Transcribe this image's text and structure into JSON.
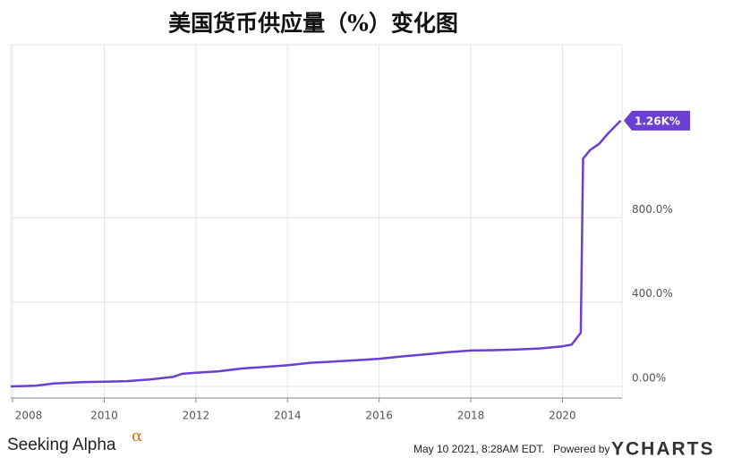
{
  "chart_data": {
    "type": "line",
    "title": "美国货币供应量（%）变化图",
    "x": [
      2007.96,
      2008.5,
      2008.9,
      2009.5,
      2010,
      2010.5,
      2011,
      2011.5,
      2011.7,
      2012,
      2012.5,
      2013,
      2013.5,
      2014,
      2014.5,
      2015,
      2015.5,
      2016,
      2016.5,
      2017,
      2017.5,
      2018,
      2018.5,
      2019,
      2019.5,
      2020,
      2020.2,
      2020.4,
      2020.45,
      2020.6,
      2020.8,
      2021,
      2021.27
    ],
    "values": [
      0,
      3,
      14,
      20,
      22,
      25,
      33,
      45,
      60,
      65,
      72,
      85,
      92,
      100,
      112,
      118,
      124,
      131,
      142,
      152,
      162,
      170,
      172,
      175,
      180,
      190,
      198,
      254,
      1080,
      1120,
      1150,
      1200,
      1260
    ],
    "end_label": "1.26K%",
    "color": "#6a3fd1",
    "xlim": [
      2007.96,
      2021.3
    ],
    "xticks": [
      2008,
      2010,
      2012,
      2014,
      2016,
      2018,
      2020
    ],
    "ylim": [
      -55,
      1620
    ],
    "yticks": [
      {
        "value": 0,
        "label": "0.00%"
      },
      {
        "value": 400,
        "label": "400.0%"
      },
      {
        "value": 800,
        "label": "800.0%"
      }
    ],
    "grid": true,
    "source": "Seeking Alpha",
    "source_mark": "α",
    "timestamp": "May 10 2021, 8:28AM EDT.",
    "powered_by": "Powered by",
    "brand": "YCHARTS"
  }
}
